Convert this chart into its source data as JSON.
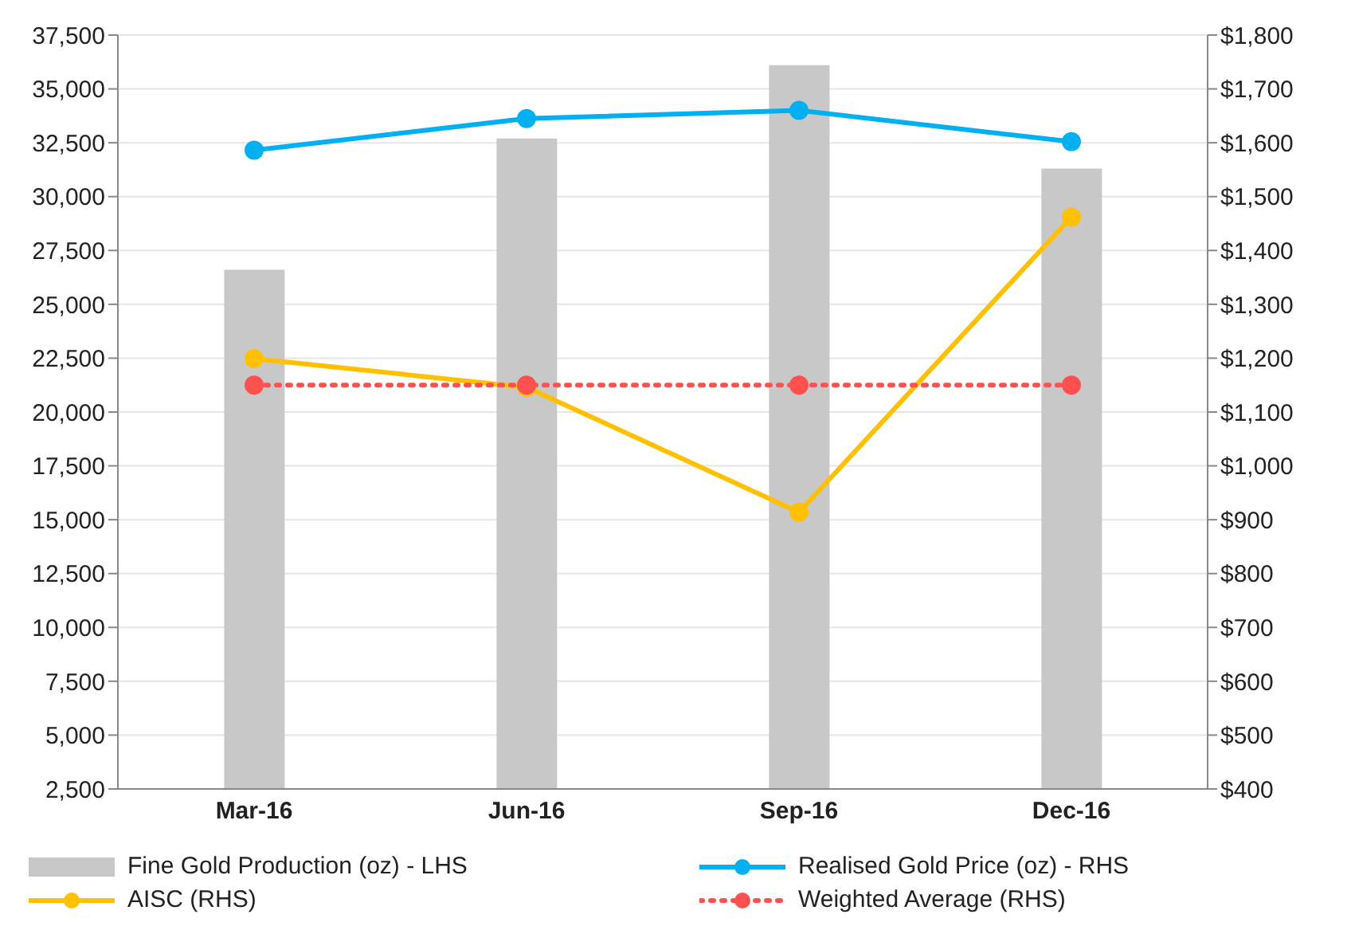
{
  "chart_data": {
    "type": "bar",
    "categories": [
      "Mar-16",
      "Jun-16",
      "Sep-16",
      "Dec-16"
    ],
    "series": [
      {
        "name": "Fine Gold Production (oz) - LHS",
        "color": "#c8c8c8",
        "values": [
          26600,
          32700,
          36100,
          31300
        ]
      },
      {
        "name": "Realised Gold Price (oz) - RHS",
        "type": "line",
        "axis": "y2",
        "color": "#00b0f0",
        "values": [
          1586,
          1645,
          1660,
          1602
        ]
      },
      {
        "name": "AISC (RHS)",
        "type": "line",
        "axis": "y2",
        "color": "#ffc000",
        "values": [
          1199,
          1146,
          914,
          1462
        ]
      },
      {
        "name": "Weighted Average (RHS)",
        "type": "line",
        "axis": "y2",
        "color": "#ff5050",
        "line_style": "dotted",
        "values": [
          1150,
          1150,
          1150,
          1150
        ]
      }
    ],
    "ylim": [
      2500,
      37500
    ],
    "yticks": [
      {
        "value": 2500,
        "label": "2,500"
      },
      {
        "value": 5000,
        "label": "5,000"
      },
      {
        "value": 7500,
        "label": "7,500"
      },
      {
        "value": 10000,
        "label": "10,000"
      },
      {
        "value": 12500,
        "label": "12,500"
      },
      {
        "value": 15000,
        "label": "15,000"
      },
      {
        "value": 17500,
        "label": "17,500"
      },
      {
        "value": 20000,
        "label": "20,000"
      },
      {
        "value": 22500,
        "label": "22,500"
      },
      {
        "value": 25000,
        "label": "25,000"
      },
      {
        "value": 27500,
        "label": "27,500"
      },
      {
        "value": 30000,
        "label": "30,000"
      },
      {
        "value": 32500,
        "label": "32,500"
      },
      {
        "value": 35000,
        "label": "35,000"
      },
      {
        "value": 37500,
        "label": "37,500"
      }
    ],
    "y2lim": [
      400,
      1800
    ],
    "y2ticks": [
      {
        "value": 400,
        "label": "$400"
      },
      {
        "value": 500,
        "label": "$500"
      },
      {
        "value": 600,
        "label": "$600"
      },
      {
        "value": 700,
        "label": "$700"
      },
      {
        "value": 800,
        "label": "$800"
      },
      {
        "value": 900,
        "label": "$900"
      },
      {
        "value": 1000,
        "label": "$1,000"
      },
      {
        "value": 1100,
        "label": "$1,100"
      },
      {
        "value": 1200,
        "label": "$1,200"
      },
      {
        "value": 1300,
        "label": "$1,300"
      },
      {
        "value": 1400,
        "label": "$1,400"
      },
      {
        "value": 1500,
        "label": "$1,500"
      },
      {
        "value": 1600,
        "label": "$1,600"
      },
      {
        "value": 1700,
        "label": "$1,700"
      },
      {
        "value": 1800,
        "label": "$1,800"
      }
    ],
    "grid": "y",
    "legend": "bottom",
    "marker": "circle"
  }
}
